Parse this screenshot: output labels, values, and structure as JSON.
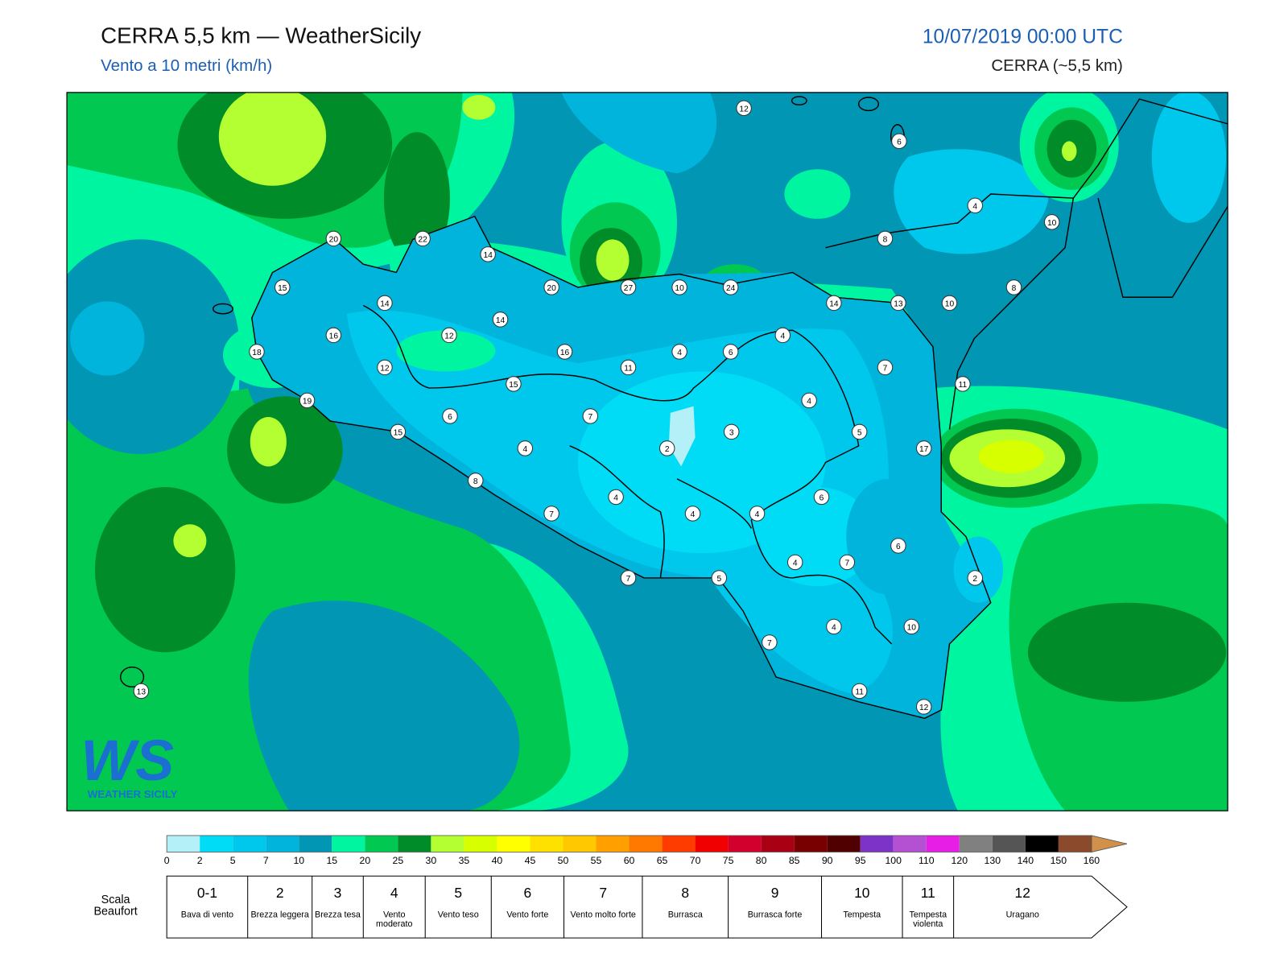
{
  "header": {
    "title": "CERRA 5,5 km — WeatherSicily",
    "subtitle": "Vento a 10 metri (km/h)",
    "date": "10/07/2019 00:00 UTC",
    "model": "CERRA (~5,5 km)"
  },
  "map": {
    "stations": [
      12,
      6,
      4,
      10,
      8,
      20,
      22,
      14,
      15,
      20,
      27,
      10,
      24,
      8,
      14,
      14,
      13,
      10,
      14,
      16,
      12,
      4,
      18,
      16,
      4,
      6,
      12,
      11,
      7,
      15,
      11,
      19,
      4,
      6,
      7,
      15,
      3,
      5,
      4,
      2,
      17,
      8,
      4,
      6,
      7,
      4,
      4,
      6,
      4,
      7,
      2,
      7,
      5,
      4,
      10,
      7,
      13,
      11,
      12
    ]
  },
  "logo": {
    "mark": "WS",
    "caption": "WEATHER SICILY"
  },
  "colorbar": {
    "ticks": [
      0,
      2,
      5,
      7,
      10,
      15,
      20,
      25,
      30,
      35,
      40,
      45,
      50,
      55,
      60,
      65,
      70,
      75,
      80,
      85,
      90,
      95,
      100,
      110,
      120,
      130,
      140,
      150,
      160
    ],
    "colors": [
      "#b4f0f8",
      "#00dcf5",
      "#00c8ec",
      "#00b4dc",
      "#0096b4",
      "#00f5a0",
      "#00c850",
      "#008c28",
      "#b4ff32",
      "#d7ff00",
      "#ffff00",
      "#ffe100",
      "#ffc800",
      "#ffa000",
      "#ff7800",
      "#ff3c00",
      "#f00000",
      "#d2002d",
      "#aa0014",
      "#780000",
      "#500000",
      "#7d32c8",
      "#b450d2",
      "#e61ee6",
      "#808080",
      "#555555",
      "#000000",
      "#8b4a2b",
      "#c8824b"
    ],
    "extend_color": "#d2914b"
  },
  "beaufort": {
    "title": "Scala Beaufort",
    "levels": [
      {
        "force": "0-1",
        "label": "Bava di vento"
      },
      {
        "force": 2,
        "label": "Brezza leggera"
      },
      {
        "force": 3,
        "label": "Brezza tesa"
      },
      {
        "force": 4,
        "label": "Vento moderato"
      },
      {
        "force": 5,
        "label": "Vento teso"
      },
      {
        "force": 6,
        "label": "Vento forte"
      },
      {
        "force": 7,
        "label": "Vento molto forte"
      },
      {
        "force": 8,
        "label": "Burrasca"
      },
      {
        "force": 9,
        "label": "Burrasca forte"
      },
      {
        "force": 10,
        "label": "Tempesta"
      },
      {
        "force": 11,
        "label": "Tempesta violenta"
      },
      {
        "force": 12,
        "label": "Uragano"
      }
    ]
  }
}
